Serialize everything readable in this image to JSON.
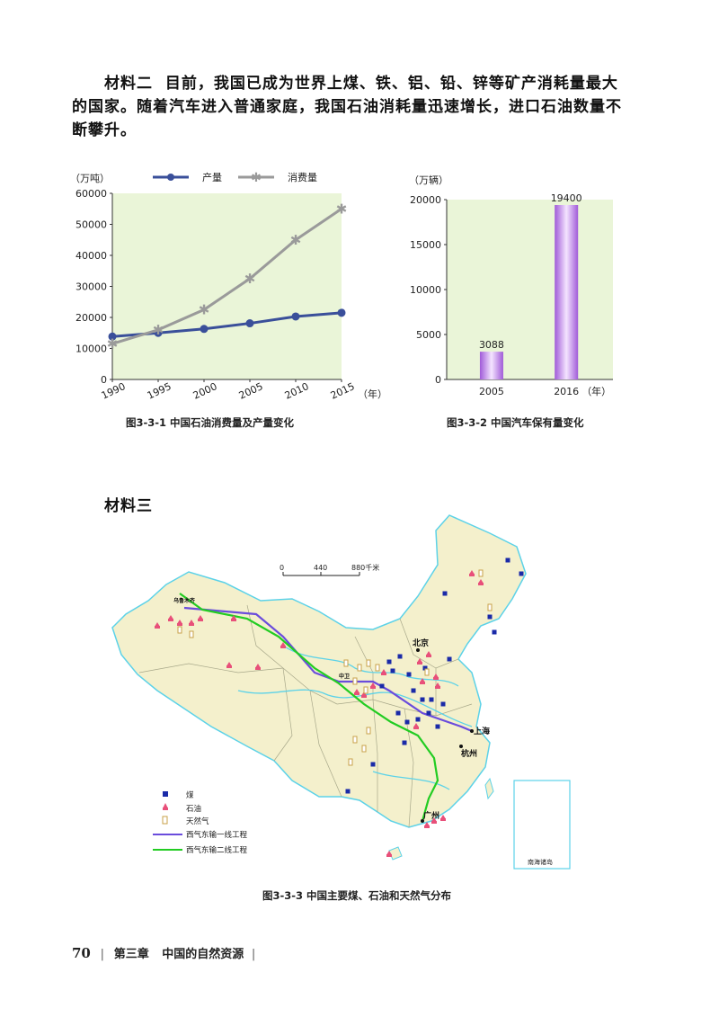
{
  "material2": {
    "label": "材料二",
    "line1": "目前，我国已成为世界上煤、铁、铝、铅、锌等矿产消耗量最大",
    "line2": "的国家。随着汽车进入普通家庭，我国石油消耗量迅速增长，进口石油数量不",
    "line3": "断攀升。"
  },
  "chart_data": [
    {
      "type": "line",
      "caption": "图3-3-1 中国石油消费量及产量变化",
      "ylabel": "（万吨）",
      "xlabel": "（年）",
      "x": [
        1990,
        1995,
        2000,
        2005,
        2010,
        2015
      ],
      "ylim": [
        0,
        60000
      ],
      "yticks": [
        "0",
        "10000",
        "20000",
        "30000",
        "40000",
        "50000",
        "60000"
      ],
      "xticks": [
        "1990",
        "1995",
        "2000",
        "2005",
        "2010",
        "2015"
      ],
      "series": [
        {
          "name": "产量",
          "color": "#3a4f9a",
          "values": [
            13830,
            15000,
            16300,
            18100,
            20300,
            21500
          ]
        },
        {
          "name": "消费量",
          "color": "#9a9a9a",
          "values": [
            11500,
            16000,
            22500,
            32500,
            45000,
            55000
          ]
        }
      ]
    },
    {
      "type": "bar",
      "caption": "图3-3-2 中国汽车保有量变化",
      "ylabel": "（万辆）",
      "xlabel": "（年）",
      "categories": [
        "2005",
        "2016"
      ],
      "values": [
        3088,
        19400
      ],
      "labels": [
        "3088",
        "19400"
      ],
      "ylim": [
        0,
        20000
      ],
      "yticks": [
        "0",
        "5000",
        "10000",
        "15000",
        "20000"
      ]
    }
  ],
  "material3": {
    "label": "材料三"
  },
  "map": {
    "caption": "图3-3-3 中国主要煤、石油和天然气分布",
    "scale": {
      "t0": "0",
      "t1": "440",
      "t2": "880千米"
    },
    "cities": {
      "beijing": "北京",
      "shanghai": "上海",
      "hangzhou": "杭州",
      "guangzhou": "广州",
      "urumqi": "乌鲁木齐",
      "zhongwei": "中卫"
    },
    "inset_label": "南海诸岛",
    "legend": {
      "coal": "煤",
      "oil": "石油",
      "gas": "天然气",
      "pipeline1": "西气东输一线工程",
      "pipeline2": "西气东输二线工程"
    },
    "colors": {
      "coal": "#1a2aa8",
      "oil": "#e8507a",
      "gas": "#c8a24a",
      "pipeline1": "#6a4cdc",
      "pipeline2": "#22cc22",
      "land": "#f4f0cc",
      "water": "#5cd2e8"
    }
  },
  "footer": {
    "page": "70",
    "chapter": "第三章",
    "title": "中国的自然资源"
  }
}
